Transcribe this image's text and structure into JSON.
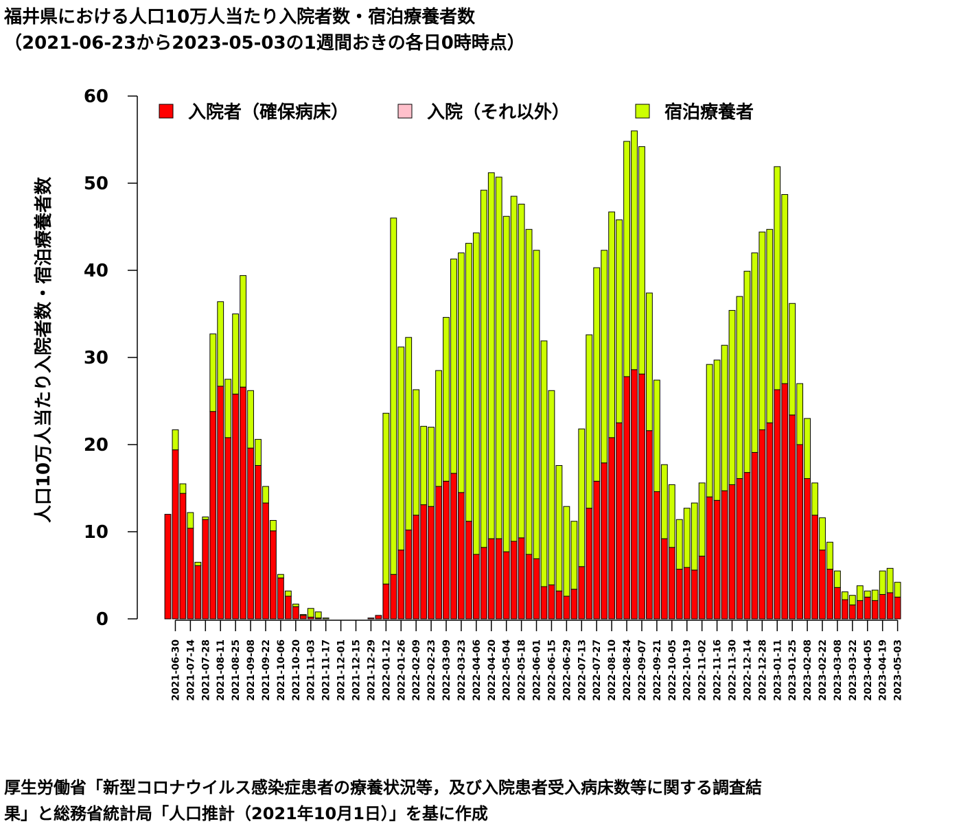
{
  "title_line1": "福井県における人口10万人当たり入院者数・宿泊療養者数",
  "title_line2": "（2021-06-23から2023-05-03の1週間おきの各日0時時点）",
  "source_line1": "厚生労働省「新型コロナウイルス感染症患者の療養状況等，及び入院患者受入病床数等に関する調査結",
  "source_line2": "果」と総務省統計局「人口推計（2021年10月1日）」を基に作成",
  "colors": {
    "hospital_secured": "#ff0000",
    "hospital_other": "#ffc0cb",
    "lodging": "#ccff00",
    "axis": "#000000"
  },
  "chart_data": {
    "type": "bar",
    "stacked": true,
    "ylabel": "人口10万人当たり入院者数・宿泊療養者数",
    "xlabel": "",
    "ylim": [
      0,
      60
    ],
    "yticks": [
      0,
      10,
      20,
      30,
      40,
      50,
      60
    ],
    "legend_position": "top",
    "categories": [
      "2021-06-23",
      "2021-06-30",
      "2021-07-07",
      "2021-07-14",
      "2021-07-21",
      "2021-07-28",
      "2021-08-04",
      "2021-08-11",
      "2021-08-18",
      "2021-08-25",
      "2021-09-01",
      "2021-09-08",
      "2021-09-15",
      "2021-09-22",
      "2021-09-29",
      "2021-10-06",
      "2021-10-13",
      "2021-10-20",
      "2021-10-27",
      "2021-11-03",
      "2021-11-10",
      "2021-11-17",
      "2021-11-24",
      "2021-12-01",
      "2021-12-08",
      "2021-12-15",
      "2021-12-22",
      "2021-12-29",
      "2022-01-05",
      "2022-01-12",
      "2022-01-19",
      "2022-01-26",
      "2022-02-02",
      "2022-02-09",
      "2022-02-16",
      "2022-02-23",
      "2022-03-02",
      "2022-03-09",
      "2022-03-16",
      "2022-03-23",
      "2022-03-30",
      "2022-04-06",
      "2022-04-13",
      "2022-04-20",
      "2022-04-27",
      "2022-05-04",
      "2022-05-11",
      "2022-05-18",
      "2022-05-25",
      "2022-06-01",
      "2022-06-08",
      "2022-06-15",
      "2022-06-22",
      "2022-06-29",
      "2022-07-06",
      "2022-07-13",
      "2022-07-20",
      "2022-07-27",
      "2022-08-03",
      "2022-08-10",
      "2022-08-17",
      "2022-08-24",
      "2022-08-31",
      "2022-09-07",
      "2022-09-14",
      "2022-09-21",
      "2022-09-28",
      "2022-10-05",
      "2022-10-12",
      "2022-10-19",
      "2022-10-26",
      "2022-11-02",
      "2022-11-09",
      "2022-11-16",
      "2022-11-23",
      "2022-11-30",
      "2022-12-07",
      "2022-12-14",
      "2022-12-21",
      "2022-12-28",
      "2023-01-04",
      "2023-01-11",
      "2023-01-18",
      "2023-01-25",
      "2023-02-01",
      "2023-02-08",
      "2023-02-15",
      "2023-02-22",
      "2023-03-01",
      "2023-03-08",
      "2023-03-15",
      "2023-03-22",
      "2023-03-29",
      "2023-04-05",
      "2023-04-12",
      "2023-04-19",
      "2023-04-26",
      "2023-05-03"
    ],
    "tick_labels": [
      "2021-06-30",
      "2021-07-14",
      "2021-07-28",
      "2021-08-11",
      "2021-08-25",
      "2021-09-08",
      "2021-09-22",
      "2021-10-06",
      "2021-10-20",
      "2021-11-03",
      "2021-11-17",
      "2021-12-01",
      "2021-12-15",
      "2021-12-29",
      "2022-01-12",
      "2022-01-26",
      "2022-02-09",
      "2022-02-23",
      "2022-03-09",
      "2022-03-23",
      "2022-04-06",
      "2022-04-20",
      "2022-05-04",
      "2022-05-18",
      "2022-06-01",
      "2022-06-15",
      "2022-06-29",
      "2022-07-13",
      "2022-07-27",
      "2022-08-10",
      "2022-08-24",
      "2022-09-07",
      "2022-09-21",
      "2022-10-05",
      "2022-10-19",
      "2022-11-02",
      "2022-11-16",
      "2022-11-30",
      "2022-12-14",
      "2022-12-28",
      "2023-01-11",
      "2023-01-25",
      "2023-02-08",
      "2023-02-22",
      "2023-03-08",
      "2023-03-22",
      "2023-04-05",
      "2023-04-19",
      "2023-05-03"
    ],
    "series": [
      {
        "name": "入院者（確保病床）",
        "values": [
          12.0,
          19.4,
          14.4,
          10.4,
          6.1,
          11.4,
          23.8,
          26.7,
          20.8,
          25.8,
          26.6,
          19.6,
          17.6,
          13.3,
          10.1,
          4.7,
          2.6,
          1.4,
          0.4,
          0.2,
          0.1,
          0.0,
          0.0,
          0.0,
          0.0,
          0.0,
          0.0,
          0.1,
          0.4,
          4.0,
          5.1,
          7.9,
          10.2,
          11.9,
          13.1,
          12.9,
          15.2,
          15.8,
          16.7,
          14.5,
          11.2,
          7.4,
          8.2,
          9.2,
          9.2,
          7.7,
          8.9,
          9.3,
          7.4,
          6.9,
          3.7,
          3.9,
          3.2,
          2.6,
          3.4,
          6.0,
          12.7,
          15.8,
          17.9,
          20.8,
          22.5,
          27.8,
          28.6,
          28.1,
          21.6,
          14.6,
          9.2,
          8.2,
          5.7,
          5.9,
          5.6,
          7.2,
          14.0,
          13.6,
          14.7,
          15.4,
          16.1,
          16.8,
          19.1,
          21.7,
          22.5,
          26.3,
          27.0,
          23.4,
          20.0,
          16.1,
          11.9,
          7.9,
          5.7,
          3.6,
          2.2,
          1.6,
          2.1,
          2.5,
          2.1,
          2.8,
          3.0,
          2.5
        ]
      },
      {
        "name": "入院（それ以外）",
        "values": [
          0.0,
          0.0,
          0.0,
          0.0,
          0.0,
          0.0,
          0.0,
          0.0,
          0.0,
          0.0,
          0.0,
          0.0,
          0.0,
          0.0,
          0.0,
          0.0,
          0.0,
          0.0,
          0.0,
          0.0,
          0.0,
          0.0,
          0.0,
          0.0,
          0.0,
          0.0,
          0.0,
          0.0,
          0.0,
          0.0,
          0.0,
          0.0,
          0.0,
          0.0,
          0.0,
          0.0,
          0.0,
          0.0,
          0.0,
          0.0,
          0.0,
          0.0,
          0.0,
          0.0,
          0.0,
          0.0,
          0.0,
          0.0,
          0.0,
          0.0,
          0.0,
          0.0,
          0.0,
          0.0,
          0.0,
          0.0,
          0.0,
          0.0,
          0.0,
          0.0,
          0.0,
          0.0,
          0.0,
          0.0,
          0.0,
          0.0,
          0.0,
          0.0,
          0.0,
          0.0,
          0.0,
          0.0,
          0.0,
          0.0,
          0.0,
          0.0,
          0.0,
          0.0,
          0.0,
          0.0,
          0.0,
          0.0,
          0.0,
          0.0,
          0.0,
          0.0,
          0.0,
          0.0,
          0.0,
          0.0,
          0.0,
          0.0,
          0.0,
          0.0,
          0.0,
          0.0,
          0.0,
          0.0
        ]
      },
      {
        "name": "宿泊療養者",
        "values": [
          0.0,
          2.3,
          1.1,
          1.8,
          0.4,
          0.3,
          8.9,
          9.7,
          6.7,
          9.2,
          12.8,
          6.6,
          3.0,
          1.9,
          1.2,
          0.4,
          0.6,
          0.3,
          0.1,
          1.0,
          0.7,
          0.1,
          0.0,
          0.0,
          0.0,
          0.0,
          0.0,
          0.0,
          0.0,
          19.6,
          40.9,
          23.3,
          22.1,
          14.4,
          9.0,
          9.1,
          13.3,
          18.8,
          24.6,
          27.5,
          31.9,
          36.9,
          41.0,
          42.0,
          41.5,
          38.5,
          39.6,
          38.3,
          37.3,
          35.4,
          28.2,
          22.3,
          14.4,
          10.3,
          7.8,
          15.8,
          19.9,
          24.5,
          24.4,
          25.9,
          23.3,
          27.0,
          27.4,
          26.1,
          15.8,
          12.8,
          8.5,
          7.2,
          5.7,
          6.8,
          7.7,
          8.4,
          15.2,
          16.1,
          16.7,
          20.0,
          20.9,
          23.1,
          22.9,
          22.7,
          22.2,
          25.6,
          21.7,
          12.8,
          7.0,
          6.9,
          3.7,
          3.7,
          3.1,
          1.9,
          0.9,
          1.1,
          1.7,
          0.7,
          1.2,
          2.7,
          2.8,
          1.7
        ]
      }
    ]
  }
}
